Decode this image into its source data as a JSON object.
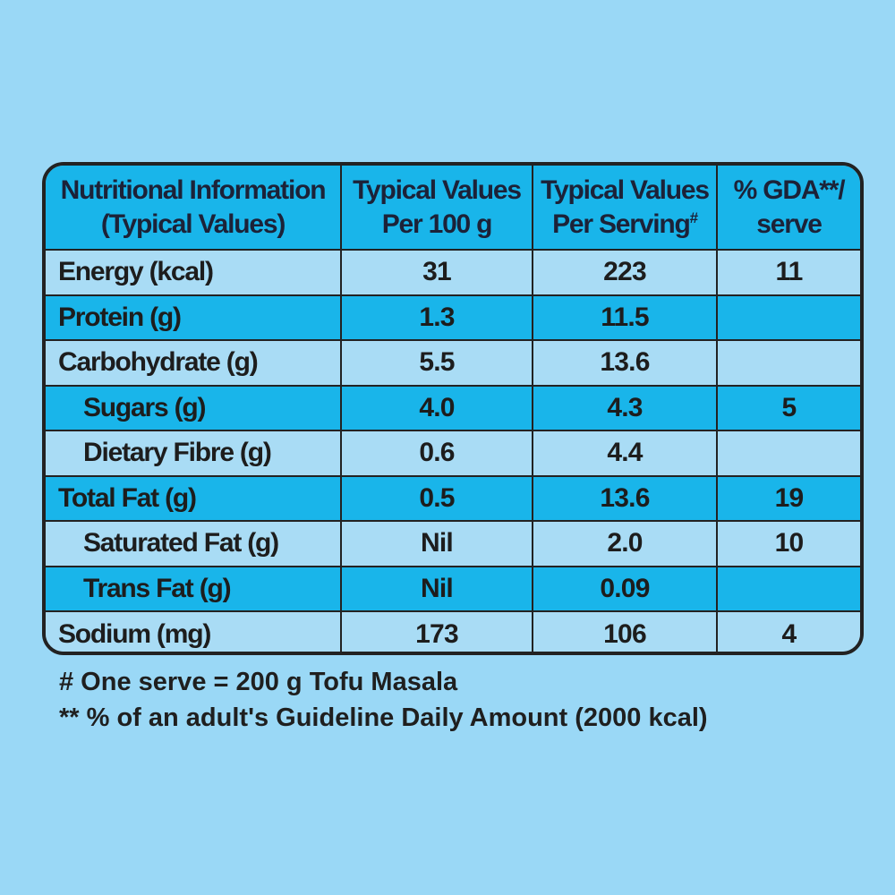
{
  "header": {
    "col1_line1": "Nutritional Information",
    "col1_line2": "(Typical Values)",
    "col2_line1": "Typical Values",
    "col2_line2": "Per 100 g",
    "col3_line1": "Typical Values",
    "col3_line2": "Per Serving",
    "col3_mark": "#",
    "col4_line1": "% GDA**/",
    "col4_line2": "serve"
  },
  "rows": [
    {
      "label": "Energy (kcal)",
      "per100": "31",
      "perServing": "223",
      "gda": "11"
    },
    {
      "label": "Protein (g)",
      "per100": "1.3",
      "perServing": "11.5",
      "gda": ""
    },
    {
      "label": "Carbohydrate (g)",
      "per100": "5.5",
      "perServing": "13.6",
      "gda": ""
    },
    {
      "label": "Sugars (g)",
      "per100": "4.0",
      "perServing": "4.3",
      "gda": "5"
    },
    {
      "label": "Dietary Fibre (g)",
      "per100": "0.6",
      "perServing": "4.4",
      "gda": ""
    },
    {
      "label": "Total Fat (g)",
      "per100": "0.5",
      "perServing": "13.6",
      "gda": "19"
    },
    {
      "label": "Saturated Fat (g)",
      "per100": "Nil",
      "perServing": "2.0",
      "gda": "10"
    },
    {
      "label": "Trans Fat (g)",
      "per100": "Nil",
      "perServing": "0.09",
      "gda": ""
    },
    {
      "label": "Sodium (mg)",
      "per100": "173",
      "perServing": "106",
      "gda": "4"
    }
  ],
  "footnotes": {
    "serve": "# One serve = 200 g Tofu Masala",
    "gda": "** % of an adult's Guideline Daily Amount (2000 kcal)"
  },
  "colors": {
    "background": "#9ad8f6",
    "header_fill": "#19b5ea",
    "row_light": "#a9dcf5",
    "row_dark": "#19b5ea",
    "border": "#222222"
  }
}
